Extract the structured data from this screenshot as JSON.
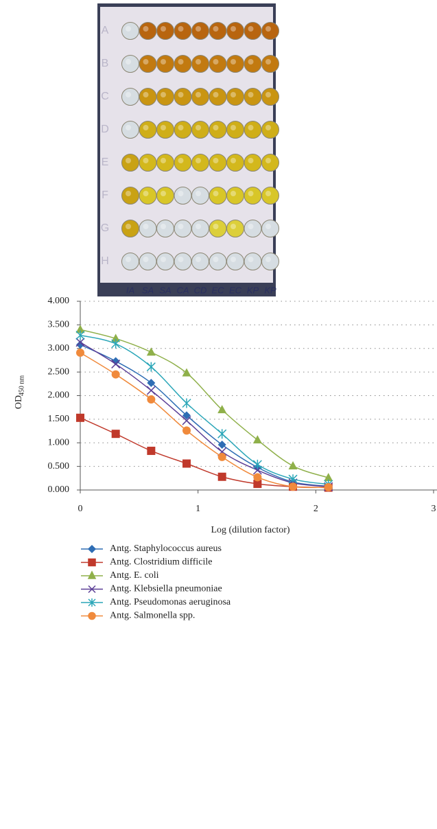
{
  "photo": {
    "row_labels": [
      "A",
      "B",
      "C",
      "D",
      "E",
      "F",
      "G",
      "H"
    ],
    "column_labels": [
      "IA",
      "SA",
      "SA",
      "CA",
      "CD",
      "EC",
      "EC",
      "KP",
      "KP"
    ]
  },
  "chart_data": {
    "type": "line",
    "xlabel": "Log (dilution factor)",
    "ylabel": "OD",
    "ylabel_subscript": "450 nm",
    "x": [
      0,
      0.301,
      0.602,
      0.903,
      1.204,
      1.505,
      1.806,
      2.107
    ],
    "xlim": [
      0,
      3
    ],
    "xticks": [
      0,
      1,
      2,
      3
    ],
    "ylim": [
      0,
      4
    ],
    "yticks": [
      {
        "value": 0,
        "label": "0.000"
      },
      {
        "value": 0.5,
        "label": "0.500"
      },
      {
        "value": 1,
        "label": "1.000"
      },
      {
        "value": 1.5,
        "label": "1.500"
      },
      {
        "value": 2,
        "label": "2.000"
      },
      {
        "value": 2.5,
        "label": "2.500"
      },
      {
        "value": 3,
        "label": "3.000"
      },
      {
        "value": 3.5,
        "label": "3.500"
      },
      {
        "value": 4,
        "label": "4.000"
      }
    ],
    "grid": true,
    "legend": "bottom",
    "series": [
      {
        "name": "Antg. Staphylococcus aureus",
        "color": "#2e6db4",
        "marker": "diamond",
        "values": [
          3.08,
          2.73,
          2.27,
          1.58,
          0.96,
          0.48,
          0.17,
          0.08
        ]
      },
      {
        "name": "Antg. Clostridium difficile",
        "color": "#c0392b",
        "marker": "square",
        "values": [
          1.53,
          1.19,
          0.83,
          0.56,
          0.28,
          0.13,
          0.07,
          0.05
        ]
      },
      {
        "name": "Antg. E. coli",
        "color": "#8fb04a",
        "marker": "triangle",
        "values": [
          3.4,
          3.21,
          2.92,
          2.48,
          1.7,
          1.06,
          0.51,
          0.26
        ]
      },
      {
        "name": "Antg. Klebsiella pneumoniae",
        "color": "#5b3e96",
        "marker": "x",
        "values": [
          3.13,
          2.67,
          2.11,
          1.47,
          0.81,
          0.42,
          0.15,
          0.07
        ]
      },
      {
        "name": "Antg. Pseudomonas aeruginosa",
        "color": "#2aa6b8",
        "marker": "star",
        "values": [
          3.28,
          3.1,
          2.61,
          1.84,
          1.19,
          0.54,
          0.23,
          0.12
        ]
      },
      {
        "name": "Antg. Salmonella spp.",
        "color": "#f08a3c",
        "marker": "circle",
        "values": [
          2.91,
          2.45,
          1.92,
          1.26,
          0.7,
          0.27,
          0.07,
          0.06
        ]
      }
    ]
  }
}
